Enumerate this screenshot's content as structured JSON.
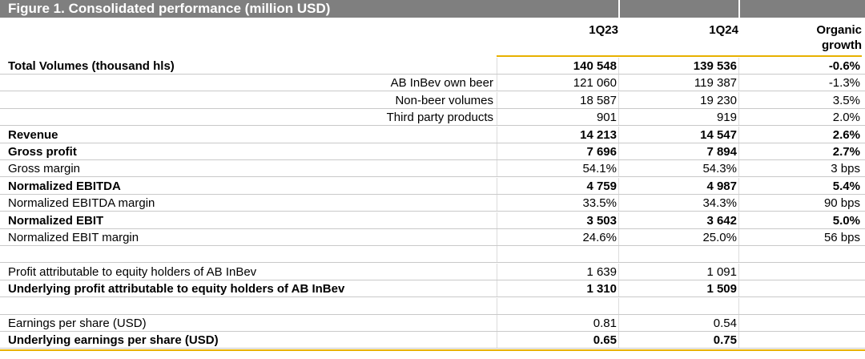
{
  "figure_title": "Figure 1. Consolidated performance (million USD)",
  "columns": {
    "c1": "1Q23",
    "c2": "1Q24",
    "c3_line1": "Organic",
    "c3_line2": "growth"
  },
  "rows": [
    {
      "label": "Total Volumes (thousand hls)",
      "v1": "140 548",
      "v2": "139 536",
      "g": "-0.6%",
      "bold": true,
      "sub": false
    },
    {
      "label": "AB InBev own beer",
      "v1": "121 060",
      "v2": "119 387",
      "g": "-1.3%",
      "bold": false,
      "sub": true
    },
    {
      "label": "Non-beer volumes",
      "v1": "18 587",
      "v2": "19 230",
      "g": "3.5%",
      "bold": false,
      "sub": true
    },
    {
      "label": "Third party products",
      "v1": "901",
      "v2": "919",
      "g": "2.0%",
      "bold": false,
      "sub": true
    },
    {
      "label": "Revenue",
      "v1": "14 213",
      "v2": "14 547",
      "g": "2.6%",
      "bold": true,
      "sub": false
    },
    {
      "label": "Gross profit",
      "v1": "7 696",
      "v2": "7 894",
      "g": "2.7%",
      "bold": true,
      "sub": false
    },
    {
      "label": "Gross margin",
      "v1": "54.1%",
      "v2": "54.3%",
      "g": "3 bps",
      "bold": false,
      "sub": false
    },
    {
      "label": "Normalized EBITDA",
      "v1": "4 759",
      "v2": "4 987",
      "g": "5.4%",
      "bold": true,
      "sub": false
    },
    {
      "label": "Normalized EBITDA margin",
      "v1": "33.5%",
      "v2": "34.3%",
      "g": "90 bps",
      "bold": false,
      "sub": false
    },
    {
      "label": "Normalized EBIT",
      "v1": "3 503",
      "v2": "3 642",
      "g": "5.0%",
      "bold": true,
      "sub": false
    },
    {
      "label": "Normalized EBIT margin",
      "v1": "24.6%",
      "v2": "25.0%",
      "g": "56 bps",
      "bold": false,
      "sub": false
    },
    {
      "label": "",
      "v1": "",
      "v2": "",
      "g": "",
      "bold": false,
      "sub": false
    },
    {
      "label": "Profit attributable to equity holders of AB InBev",
      "v1": "1 639",
      "v2": "1 091",
      "g": "",
      "bold": false,
      "sub": false
    },
    {
      "label": "Underlying profit attributable to equity holders of AB InBev",
      "v1": "1 310",
      "v2": "1 509",
      "g": "",
      "bold": true,
      "sub": false
    },
    {
      "label": "",
      "v1": "",
      "v2": "",
      "g": "",
      "bold": false,
      "sub": false
    },
    {
      "label": "Earnings per share (USD)",
      "v1": "0.81",
      "v2": "0.54",
      "g": "",
      "bold": false,
      "sub": false
    },
    {
      "label": "Underlying earnings per share (USD)",
      "v1": "0.65",
      "v2": "0.75",
      "g": "",
      "bold": true,
      "sub": false
    }
  ],
  "colors": {
    "title_bar": "#7f7f7f",
    "accent_rule": "#e8b100",
    "row_rule": "#c9c9c9"
  }
}
